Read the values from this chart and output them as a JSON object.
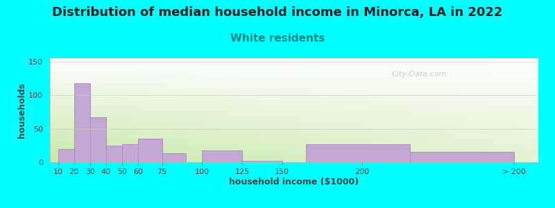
{
  "title": "Distribution of median household income in Minorca, LA in 2022",
  "subtitle": "White residents",
  "xlabel": "household income ($1000)",
  "ylabel": "households",
  "background_color": "#00FFFF",
  "bar_color": "#C4A8D4",
  "bar_edge_color": "#A888B8",
  "title_fontsize": 13,
  "title_color": "#222222",
  "subtitle_fontsize": 11,
  "subtitle_color": "#008888",
  "xlabel_fontsize": 9,
  "ylabel_fontsize": 9,
  "values": [
    20,
    118,
    67,
    25,
    27,
    35,
    13,
    18,
    2,
    0,
    27,
    15
  ],
  "bar_lefts": [
    10,
    20,
    30,
    40,
    50,
    60,
    75,
    100,
    125,
    150,
    165,
    230
  ],
  "bar_widths": [
    10,
    10,
    10,
    10,
    10,
    15,
    15,
    25,
    25,
    15,
    65,
    65
  ],
  "ylim": [
    0,
    155
  ],
  "yticks": [
    0,
    50,
    100,
    150
  ],
  "xtick_positions": [
    10,
    20,
    30,
    40,
    50,
    60,
    75,
    100,
    125,
    150,
    200,
    295
  ],
  "xtick_labels": [
    "10",
    "20",
    "30",
    "40",
    "50",
    "60",
    "75",
    "100",
    "125",
    "150",
    "200",
    "> 200"
  ],
  "xlim_left": 5,
  "xlim_right": 310,
  "watermark": "City-Data.com",
  "grad_top_color": "#ffffff",
  "grad_bottom_color": "#c8e8a8"
}
